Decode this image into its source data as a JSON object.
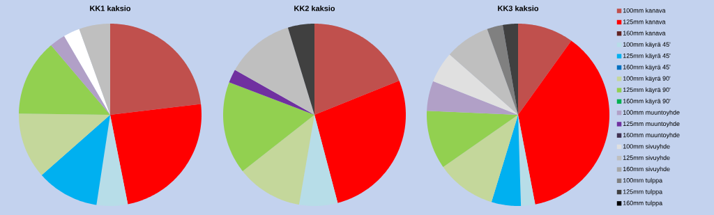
{
  "chart_data": [
    {
      "type": "pie",
      "title": "KK1 kaksio",
      "categories": [
        null,
        null,
        null,
        null,
        null,
        null,
        null,
        null,
        null,
        null,
        null,
        null,
        null,
        null,
        null,
        null,
        null,
        null
      ],
      "values": [
        23.1,
        23.8,
        0,
        5.5,
        11.1,
        0,
        11.7,
        13.6,
        0,
        2.8,
        0,
        0,
        2.9,
        5.5,
        0,
        0,
        0,
        0
      ],
      "colors": [
        "#c0504d",
        "#ff0000",
        "#632523",
        "#b7dde8",
        "#00b0f0",
        "#0070c0",
        "#c4d79b",
        "#92d050",
        "#00b050",
        "#b1a0c7",
        "#7030a0",
        "#403151",
        "#ffffff",
        "#bfbfbf",
        "#a6a6a6",
        "#808080",
        "#404040",
        "#000000"
      ]
    },
    {
      "type": "pie",
      "title": "KK2 kaksio",
      "categories": [
        null,
        null,
        null,
        null,
        null,
        null,
        null,
        null,
        null,
        null,
        null,
        null,
        null,
        null,
        null,
        null,
        null,
        null
      ],
      "values": [
        18.9,
        27.0,
        0,
        6.8,
        0,
        0,
        11.7,
        16.4,
        0,
        0,
        2.4,
        0,
        0,
        12.1,
        0,
        0,
        4.7,
        0
      ],
      "colors": [
        "#c0504d",
        "#ff0000",
        "#632523",
        "#b7dde8",
        "#00b0f0",
        "#0070c0",
        "#c4d79b",
        "#92d050",
        "#00b050",
        "#b1a0c7",
        "#7030a0",
        "#403151",
        "#e6e6e6",
        "#bfbfbf",
        "#a6a6a6",
        "#808080",
        "#404040",
        "#000000"
      ]
    },
    {
      "type": "pie",
      "title": "KK3 kaksio",
      "legend": "right",
      "categories": [
        "100mm kanava",
        "125mm kanava",
        "160mm kanava",
        "100mm käyrä 45'",
        "125mm käyrä 45'",
        "160mm käyrä 45'",
        "100mm käyrä 90'",
        "125mm käyrä 90'",
        "160mm käyrä 90'",
        "100mm muuntoyhde",
        "125mm muuntoyhde",
        "160mm muuntoyhde",
        "100mm sivuyhde",
        "125mm sivuyhde",
        "160mm sivuyhde",
        "100mm tulppa",
        "125mm tulppa",
        "160mm tulppa"
      ],
      "values": [
        9.9,
        37.1,
        0,
        2.5,
        5.2,
        0,
        10.6,
        10.4,
        0,
        5.3,
        0,
        0,
        5.5,
        8.0,
        0,
        2.8,
        2.7,
        0
      ],
      "colors": [
        "#c0504d",
        "#ff0000",
        "#632523",
        "#b7dde8",
        "#00b0f0",
        "#0070c0",
        "#c4d79b",
        "#92d050",
        "#00b050",
        "#b1a0c7",
        "#7030a0",
        "#403151",
        "#e0e0e0",
        "#bfbfbf",
        "#a6a6a6",
        "#808080",
        "#404040",
        "#000000"
      ]
    }
  ]
}
